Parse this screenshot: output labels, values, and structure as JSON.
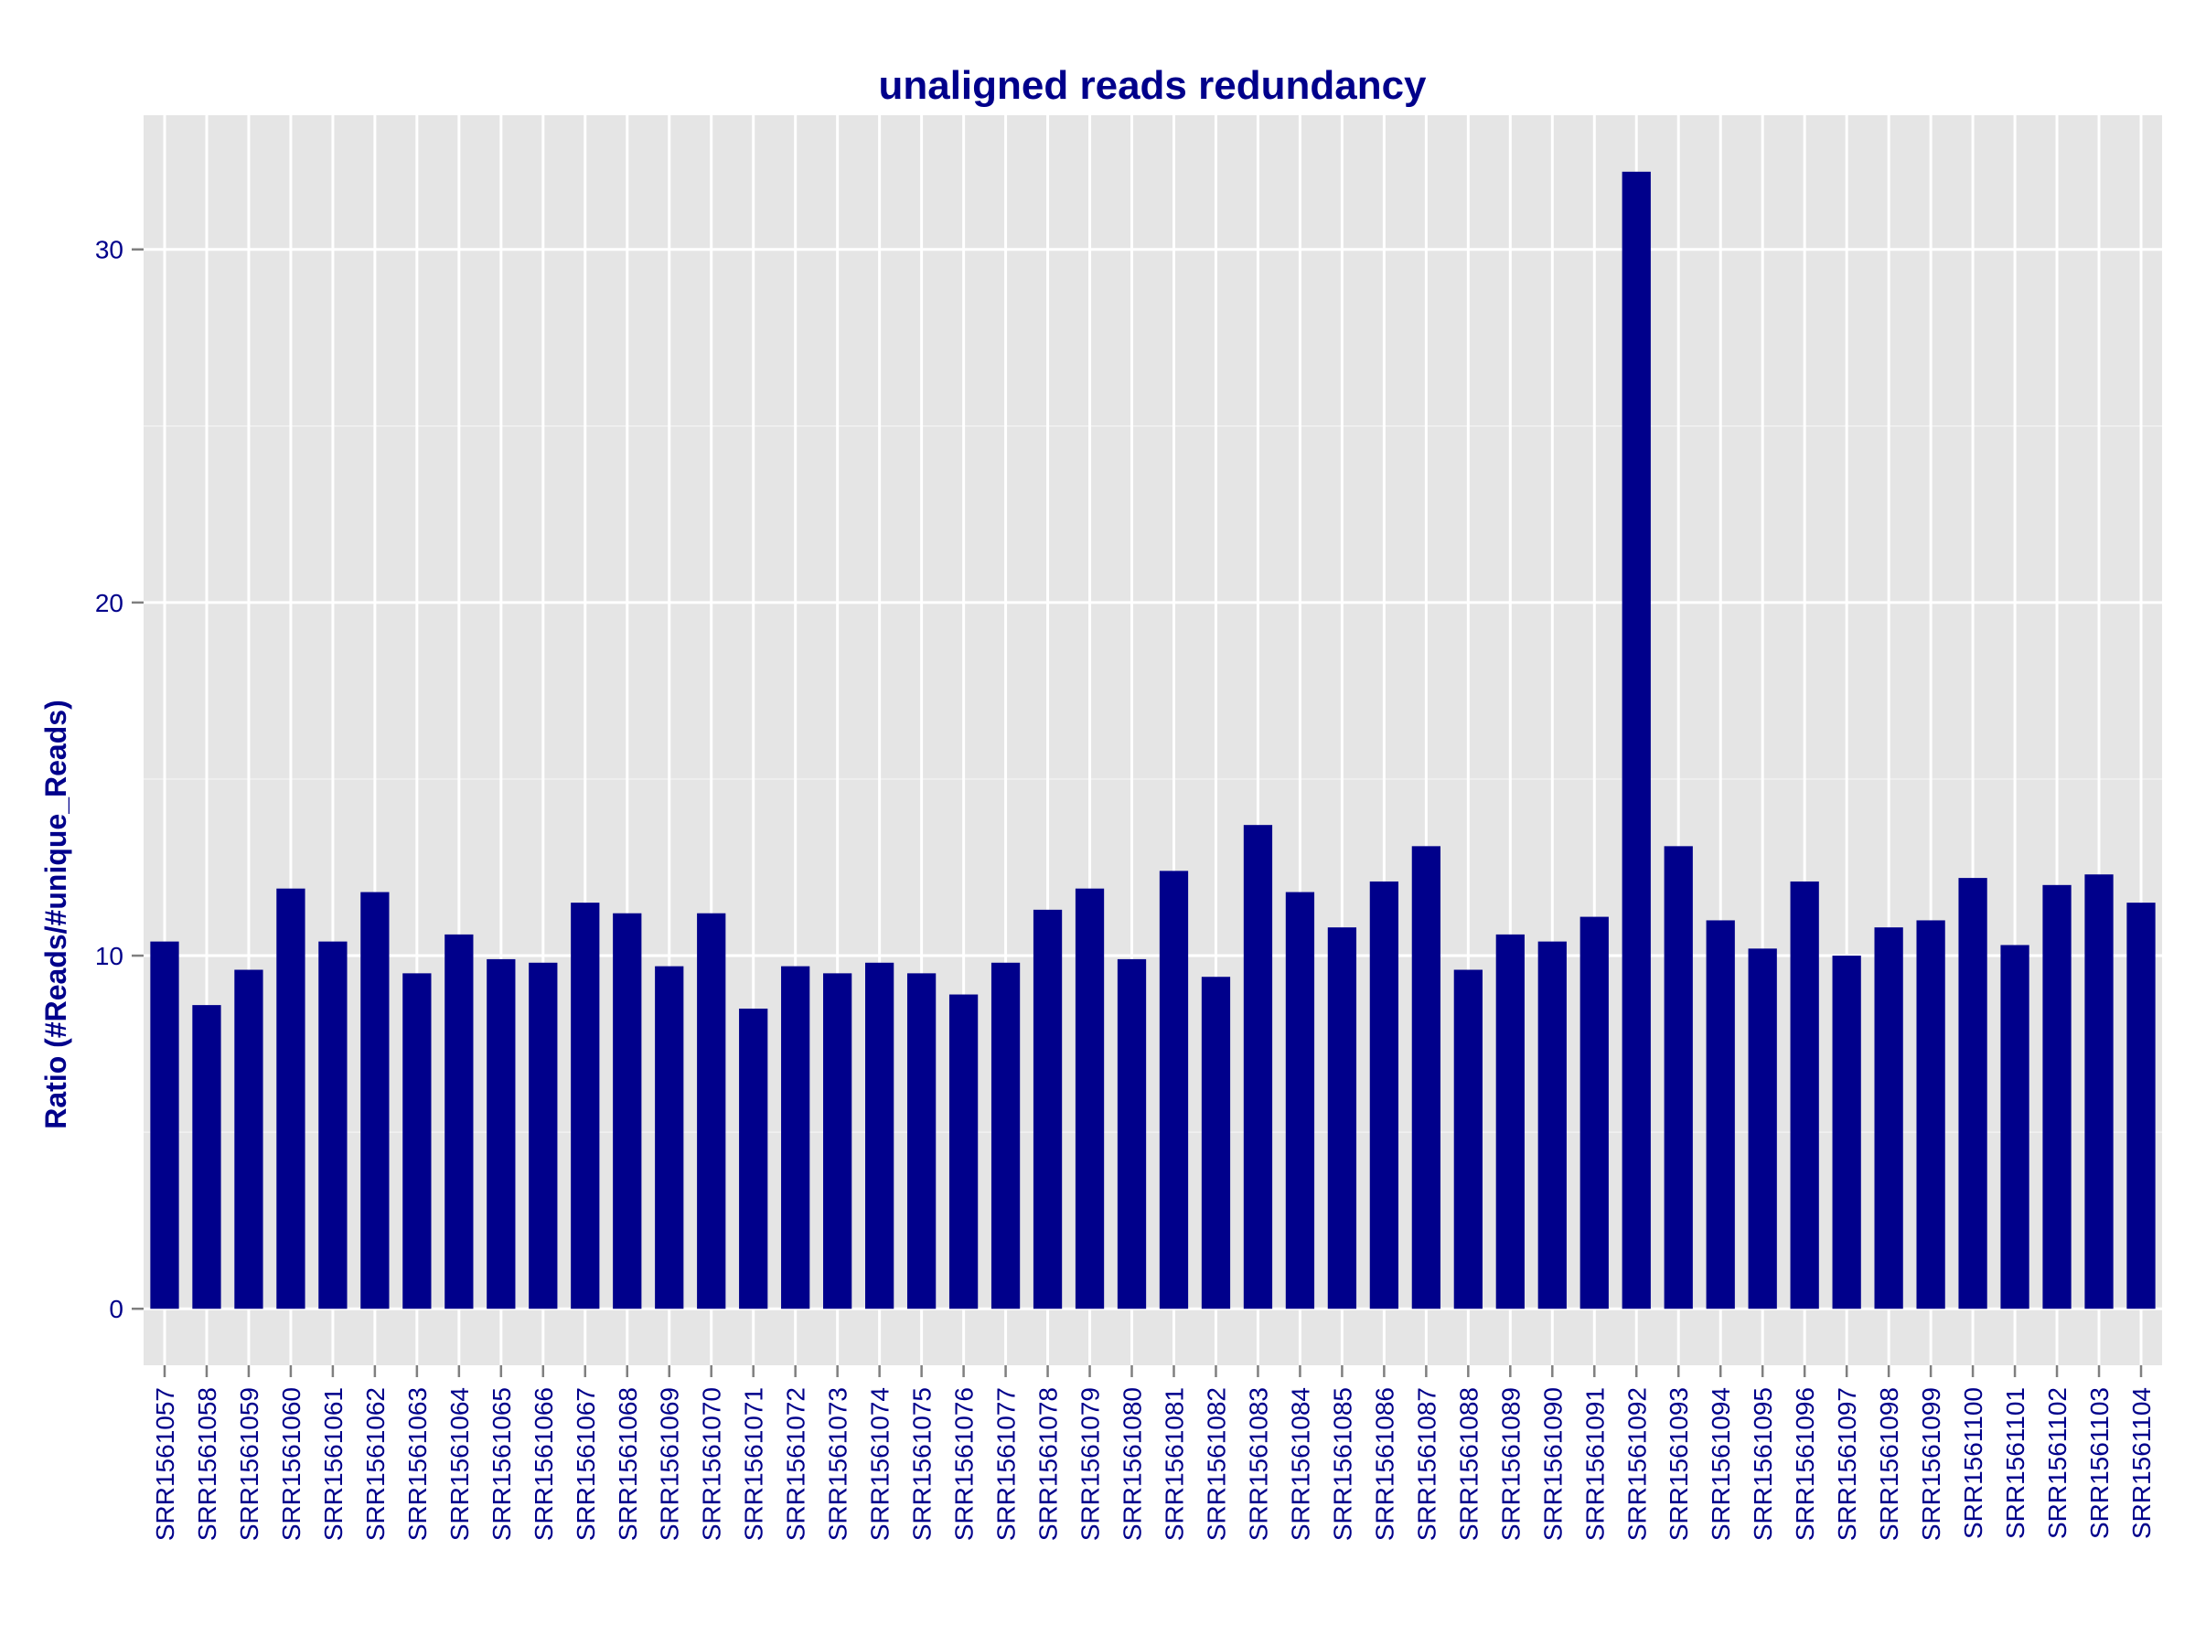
{
  "chart_data": {
    "type": "bar",
    "title": "unaligned reads redundancy",
    "xlabel": "",
    "ylabel": "Ratio (#Reads/#unique_Reads)",
    "ylim": [
      -1.6,
      33.8
    ],
    "yticks": [
      0,
      10,
      20,
      30
    ],
    "grid": true,
    "legend": "none",
    "colors": {
      "bar": "#00008B",
      "text": "#00008B",
      "panel": "#E5E5E5",
      "grid_major": "#FFFFFF",
      "grid_minor": "#F2F2F2",
      "tick": "#7F7F7F"
    },
    "categories": [
      "SRR1561057",
      "SRR1561058",
      "SRR1561059",
      "SRR1561060",
      "SRR1561061",
      "SRR1561062",
      "SRR1561063",
      "SRR1561064",
      "SRR1561065",
      "SRR1561066",
      "SRR1561067",
      "SRR1561068",
      "SRR1561069",
      "SRR1561070",
      "SRR1561071",
      "SRR1561072",
      "SRR1561073",
      "SRR1561074",
      "SRR1561075",
      "SRR1561076",
      "SRR1561077",
      "SRR1561078",
      "SRR1561079",
      "SRR1561080",
      "SRR1561081",
      "SRR1561082",
      "SRR1561083",
      "SRR1561084",
      "SRR1561085",
      "SRR1561086",
      "SRR1561087",
      "SRR1561088",
      "SRR1561089",
      "SRR1561090",
      "SRR1561091",
      "SRR1561092",
      "SRR1561093",
      "SRR1561094",
      "SRR1561095",
      "SRR1561096",
      "SRR1561097",
      "SRR1561098",
      "SRR1561099",
      "SRR1561100",
      "SRR1561101",
      "SRR1561102",
      "SRR1561103",
      "SRR1561104"
    ],
    "values": [
      10.4,
      8.6,
      9.6,
      11.9,
      10.4,
      11.8,
      9.5,
      10.6,
      9.9,
      9.8,
      11.5,
      11.2,
      9.7,
      11.2,
      8.5,
      9.7,
      9.5,
      9.8,
      9.5,
      8.9,
      9.8,
      11.3,
      11.9,
      9.9,
      12.4,
      9.4,
      13.7,
      11.8,
      10.8,
      12.1,
      13.1,
      9.6,
      10.6,
      10.4,
      11.1,
      32.2,
      13.1,
      11.0,
      10.2,
      12.1,
      10.0,
      10.8,
      11.0,
      12.2,
      10.3,
      12.0,
      12.3,
      11.5
    ]
  }
}
